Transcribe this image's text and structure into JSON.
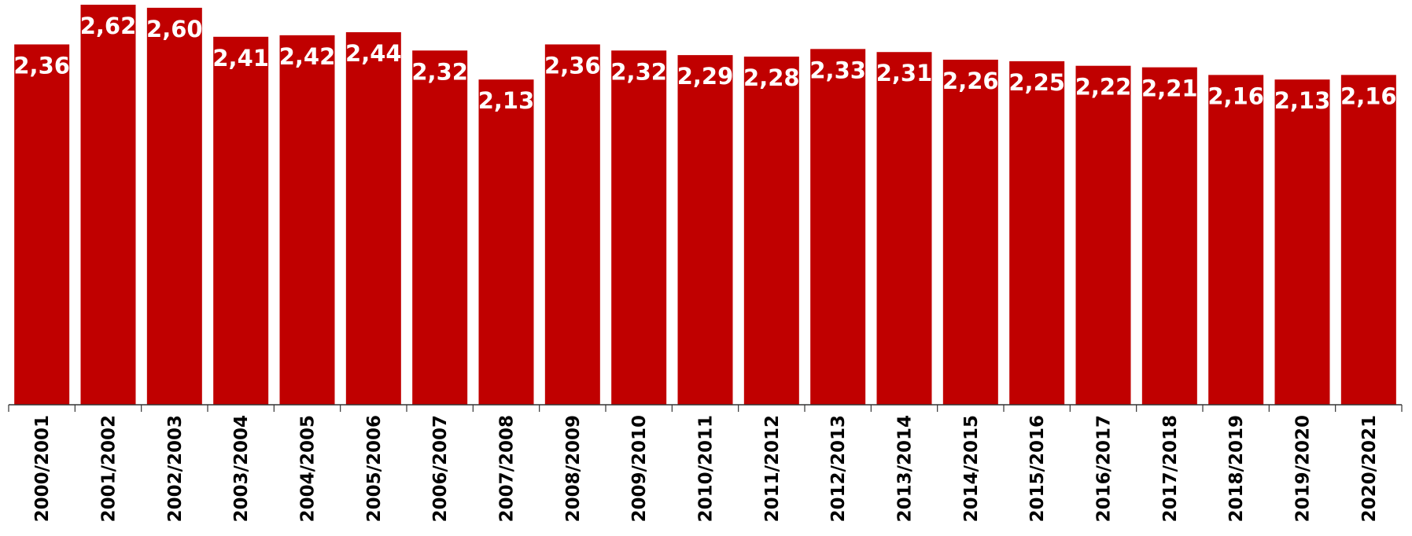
{
  "chart_data": {
    "type": "bar",
    "categories": [
      "2000/2001",
      "2001/2002",
      "2002/2003",
      "2003/2004",
      "2004/2005",
      "2005/2006",
      "2006/2007",
      "2007/2008",
      "2008/2009",
      "2009/2010",
      "2010/2011",
      "2011/2012",
      "2012/2013",
      "2013/2014",
      "2014/2015",
      "2015/2016",
      "2016/2017",
      "2017/2018",
      "2018/2019",
      "2019/2020",
      "2020/2021"
    ],
    "values": [
      2.36,
      2.62,
      2.6,
      2.41,
      2.42,
      2.44,
      2.32,
      2.13,
      2.36,
      2.32,
      2.29,
      2.28,
      2.33,
      2.31,
      2.26,
      2.25,
      2.22,
      2.21,
      2.16,
      2.13,
      2.16
    ],
    "value_labels": [
      "2,36",
      "2,62",
      "2,60",
      "2,41",
      "2,42",
      "2,44",
      "2,32",
      "2,13",
      "2,36",
      "2,32",
      "2,29",
      "2,28",
      "2,33",
      "2,31",
      "2,26",
      "2,25",
      "2,22",
      "2,21",
      "2,16",
      "2,13",
      "2,16"
    ],
    "ylim": [
      0,
      2.62
    ],
    "grid": false,
    "legend": "none",
    "bar_color": "#c00000",
    "label_color": "#ffffff",
    "axis_color": "#333333"
  }
}
